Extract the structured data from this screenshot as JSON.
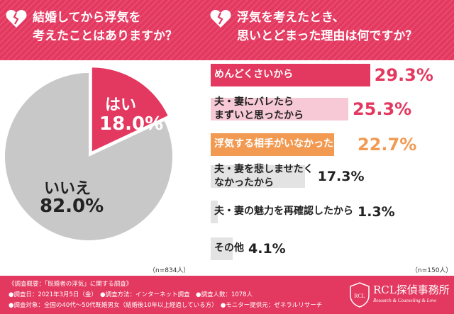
{
  "colors": {
    "accent": "#e3385f",
    "light": "#f7c9d6",
    "orange": "#f29a52",
    "gray": "#c8c8c8",
    "dark": "#222222"
  },
  "left": {
    "question_line1": "結婚してから浮気を",
    "question_line2": "考えたことはありますか？",
    "note": "（n=834人）"
  },
  "right": {
    "question_line1": "浮気を考えたとき、",
    "question_line2": "思いとどまった理由は何ですか？",
    "note": "（n=150人）"
  },
  "chart_data": [
    {
      "type": "pie",
      "title": "結婚してから浮気を考えたことはありますか？",
      "slices": [
        {
          "label": "はい",
          "value": 18.0,
          "display": "18.0%"
        },
        {
          "label": "いいえ",
          "value": 82.0,
          "display": "82.0%"
        }
      ],
      "n": "n=834人"
    },
    {
      "type": "bar",
      "orientation": "horizontal",
      "title": "浮気を考えたとき、思いとどまった理由は何ですか？",
      "categories": [
        {
          "line1": "めんどくさいから",
          "line2": ""
        },
        {
          "line1": "夫・妻にバレたら",
          "line2": "まずいと思ったから"
        },
        {
          "line1": "浮気する相手がいなかったから",
          "line2": ""
        },
        {
          "line1": "夫・妻を悲しませたく",
          "line2": "なかったから"
        },
        {
          "line1": "夫・妻の魅力を再確認したから",
          "line2": ""
        },
        {
          "line1": "その他",
          "line2": ""
        }
      ],
      "values": [
        29.3,
        25.3,
        22.7,
        17.3,
        1.3,
        4.1
      ],
      "labels": [
        "29.3%",
        "25.3%",
        "22.7%",
        "17.3%",
        "1.3%",
        "4.1%"
      ],
      "xlim": [
        0,
        30
      ],
      "n": "n=150人"
    }
  ],
  "footer": {
    "line1": "《調査概要：「既婚者の浮気」に関する調査》",
    "line2": "●調査日：2021年3月5日（金）　●調査方法：インターネット調査　●調査人数：1078人",
    "line3": "●調査対象：全国の40代〜50代既婚男女（結婚後10年以上経過している方）　●モニター提供元：ゼネラルリサーチ",
    "brand_name": "RCL探偵事務所",
    "brand_sub": "Research & Counseling & Love",
    "logo_text": "RCL"
  }
}
